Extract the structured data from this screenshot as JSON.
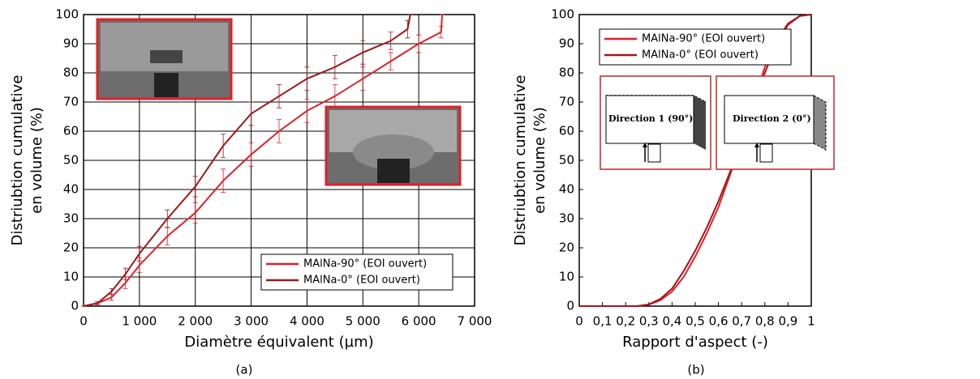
{
  "chart_data": [
    {
      "type": "line",
      "caption": "(a)",
      "xlabel": "Diamètre équivalent (µm)",
      "ylabel": [
        "Distriubtion cumulative",
        "en volume (%)"
      ],
      "xlim": [
        0,
        7000
      ],
      "xticks": [
        0,
        {
          "value": 1000,
          "label": "1 000"
        },
        {
          "value": 2000,
          "label": "2 000"
        },
        {
          "value": 3000,
          "label": "3 000"
        },
        {
          "value": 4000,
          "label": "4 000"
        },
        {
          "value": 5000,
          "label": "5 000"
        },
        {
          "value": 6000,
          "label": "6 000"
        },
        {
          "value": 7000,
          "label": "7 000"
        }
      ],
      "ylim": [
        0,
        100
      ],
      "yticks": [
        0,
        10,
        20,
        30,
        40,
        50,
        60,
        70,
        80,
        90,
        100
      ],
      "grid": true,
      "legend": "lower right",
      "series": [
        {
          "name": "MAlNa-90° (EOI ouvert)",
          "color": "#e41e26",
          "x": [
            0,
            250,
            500,
            750,
            1000,
            1500,
            2000,
            2500,
            3000,
            3500,
            4000,
            4500,
            5000,
            5500,
            6000,
            6400,
            6420
          ],
          "values": [
            0,
            1,
            3,
            8,
            14,
            24,
            32,
            43,
            52,
            60,
            67,
            72,
            78,
            84,
            90,
            94,
            100
          ],
          "errors": [
            0,
            0.5,
            1,
            2,
            2.5,
            3,
            3.5,
            4,
            4,
            4,
            4,
            4,
            4,
            3,
            3,
            2,
            0
          ]
        },
        {
          "name": "MAlNa-0° (EOI ouvert)",
          "color": "#a3161b",
          "x": [
            0,
            250,
            500,
            750,
            1000,
            1500,
            2000,
            2500,
            3000,
            3500,
            4000,
            4500,
            5000,
            5500,
            5800,
            5850
          ],
          "values": [
            0,
            1,
            5,
            11,
            18,
            30,
            41,
            55,
            66,
            72,
            78,
            82,
            87,
            91,
            95,
            100
          ],
          "errors": [
            0,
            0.5,
            1,
            2,
            2.5,
            3,
            3.5,
            4,
            4,
            4,
            4,
            4,
            4,
            3,
            3,
            0
          ]
        }
      ]
    },
    {
      "type": "line",
      "caption": "(b)",
      "xlabel": "Rapport d'aspect (-)",
      "ylabel": [
        "Distriubtion cumulative",
        "en volume (%)"
      ],
      "xlim": [
        0,
        1
      ],
      "xticks": [
        0,
        {
          "value": 0.1,
          "label": "0,1"
        },
        {
          "value": 0.2,
          "label": "0,2"
        },
        {
          "value": 0.3,
          "label": "0,3"
        },
        {
          "value": 0.4,
          "label": "0,4"
        },
        {
          "value": 0.5,
          "label": "0,5"
        },
        {
          "value": 0.6,
          "label": "0,6"
        },
        {
          "value": 0.7,
          "label": "0,7"
        },
        {
          "value": 0.8,
          "label": "0,8"
        },
        {
          "value": 0.9,
          "label": "0,9"
        },
        1
      ],
      "ylim": [
        0,
        100
      ],
      "yticks": [
        0,
        10,
        20,
        30,
        40,
        50,
        60,
        70,
        80,
        90,
        100
      ],
      "grid": false,
      "legend": "upper left",
      "annotations": [
        "Direction 1 (90°)",
        "Direction 2 (0°)"
      ],
      "series": [
        {
          "name": "MAlNa-90° (EOI ouvert)",
          "color": "#e41e26",
          "x": [
            0,
            0.25,
            0.3,
            0.35,
            0.4,
            0.45,
            0.5,
            0.55,
            0.6,
            0.65,
            0.7,
            0.75,
            0.8,
            0.85,
            0.9,
            0.95,
            1
          ],
          "values": [
            0,
            0,
            0.5,
            2,
            5,
            10,
            17,
            25,
            34,
            45,
            57,
            70,
            82,
            91,
            97,
            99.5,
            100
          ]
        },
        {
          "name": "MAlNa-0° (EOI ouvert)",
          "color": "#a3161b",
          "x": [
            0,
            0.25,
            0.3,
            0.35,
            0.4,
            0.45,
            0.5,
            0.55,
            0.6,
            0.65,
            0.7,
            0.75,
            0.8,
            0.85,
            0.9,
            0.95,
            1
          ],
          "values": [
            0,
            0,
            0.6,
            2.5,
            6,
            12,
            19,
            27,
            36,
            46,
            57,
            69,
            80,
            90,
            96.5,
            99.5,
            100
          ]
        }
      ]
    }
  ]
}
